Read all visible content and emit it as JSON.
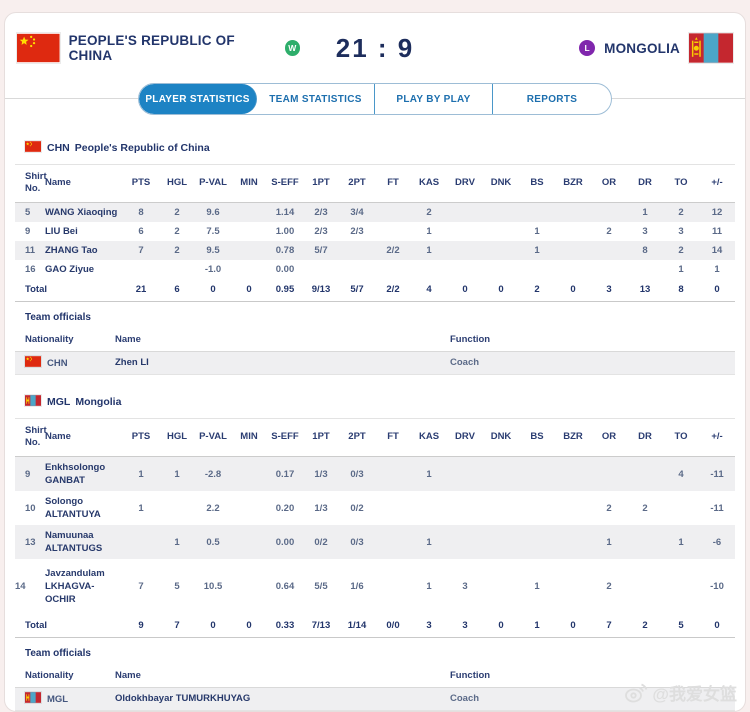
{
  "header": {
    "home": {
      "name": "PEOPLE'S REPUBLIC OF CHINA",
      "result_badge": "W"
    },
    "score": "21 : 9",
    "away": {
      "name": "MONGOLIA",
      "result_badge": "L"
    }
  },
  "tabs": [
    {
      "label": "PLAYER STATISTICS",
      "active": true
    },
    {
      "label": "TEAM STATISTICS",
      "active": false
    },
    {
      "label": "PLAY BY PLAY",
      "active": false
    },
    {
      "label": "REPORTS",
      "active": false
    }
  ],
  "stat_columns": [
    "Shirt No.",
    "Name",
    "PTS",
    "HGL",
    "P-VAL",
    "MIN",
    "S-EFF",
    "1PT",
    "2PT",
    "FT",
    "KAS",
    "DRV",
    "DNK",
    "BS",
    "BZR",
    "OR",
    "DR",
    "TO",
    "+/-"
  ],
  "teams": [
    {
      "code": "CHN",
      "name": "People's Republic of China",
      "players": [
        {
          "no": "5",
          "name": [
            "WANG Xiaoqing"
          ],
          "stats": [
            "8",
            "2",
            "9.6",
            "",
            "1.14",
            "2/3",
            "3/4",
            "",
            "2",
            "",
            "",
            "",
            "",
            "",
            "1",
            "2",
            "12"
          ]
        },
        {
          "no": "9",
          "name": [
            "LIU Bei"
          ],
          "stats": [
            "6",
            "2",
            "7.5",
            "",
            "1.00",
            "2/3",
            "2/3",
            "",
            "1",
            "",
            "",
            "1",
            "",
            "2",
            "3",
            "3",
            "11"
          ]
        },
        {
          "no": "11",
          "name": [
            "ZHANG Tao"
          ],
          "stats": [
            "7",
            "2",
            "9.5",
            "",
            "0.78",
            "5/7",
            "",
            "2/2",
            "1",
            "",
            "",
            "1",
            "",
            "",
            "8",
            "2",
            "14"
          ]
        },
        {
          "no": "16",
          "name": [
            "GAO Ziyue"
          ],
          "stats": [
            "",
            "",
            "-1.0",
            "",
            "0.00",
            "",
            "",
            "",
            "",
            "",
            "",
            "",
            "",
            "",
            "",
            "1",
            "1"
          ]
        }
      ],
      "total": {
        "label": "Total",
        "stats": [
          "21",
          "6",
          "0",
          "0",
          "0.95",
          "9/13",
          "5/7",
          "2/2",
          "4",
          "0",
          "0",
          "2",
          "0",
          "3",
          "13",
          "8",
          "0"
        ]
      },
      "officials": {
        "title": "Team officials",
        "columns": [
          "Nationality",
          "Name",
          "Function"
        ],
        "rows": [
          {
            "nationality": "CHN",
            "name": "Zhen LI",
            "function": "Coach"
          }
        ]
      }
    },
    {
      "code": "MGL",
      "name": "Mongolia",
      "players": [
        {
          "no": "9",
          "name": [
            "Enkhsolongo",
            "GANBAT"
          ],
          "stats": [
            "1",
            "1",
            "-2.8",
            "",
            "0.17",
            "1/3",
            "0/3",
            "",
            "1",
            "",
            "",
            "",
            "",
            "",
            "",
            "4",
            "-11"
          ]
        },
        {
          "no": "10",
          "name": [
            "Solongo",
            "ALTANTUYA"
          ],
          "stats": [
            "1",
            "",
            "2.2",
            "",
            "0.20",
            "1/3",
            "0/2",
            "",
            "",
            "",
            "",
            "",
            "",
            "2",
            "2",
            "",
            "-11"
          ]
        },
        {
          "no": "13",
          "name": [
            "Namuunaa",
            "ALTANTUGS"
          ],
          "stats": [
            "",
            "1",
            "0.5",
            "",
            "0.00",
            "0/2",
            "0/3",
            "",
            "1",
            "",
            "",
            "",
            "",
            "1",
            "",
            "1",
            "-6"
          ]
        },
        {
          "no": "14",
          "name": [
            "Javzandulam",
            "LKHAGVA-OCHIR"
          ],
          "stats": [
            "7",
            "5",
            "10.5",
            "",
            "0.64",
            "5/5",
            "1/6",
            "",
            "1",
            "3",
            "",
            "1",
            "",
            "2",
            "",
            "",
            "-10"
          ]
        }
      ],
      "total": {
        "label": "Total",
        "stats": [
          "9",
          "7",
          "0",
          "0",
          "0.33",
          "7/13",
          "1/14",
          "0/0",
          "3",
          "3",
          "0",
          "1",
          "0",
          "7",
          "2",
          "5",
          "0"
        ]
      },
      "officials": {
        "title": "Team officials",
        "columns": [
          "Nationality",
          "Name",
          "Function"
        ],
        "rows": [
          {
            "nationality": "MGL",
            "name": "Oldokhbayar TUMURKHUYAG",
            "function": "Coach"
          }
        ]
      }
    }
  ],
  "watermark": "@我爱女篮",
  "colors": {
    "accent_blue": "#1d83c4",
    "navy": "#22356b",
    "win_green": "#2eae6b",
    "loss_purple": "#8026ad",
    "china_flag_red": "#de2910",
    "mongolia_blue": "#4ca6c8",
    "row_stripe": "#efeff1"
  }
}
